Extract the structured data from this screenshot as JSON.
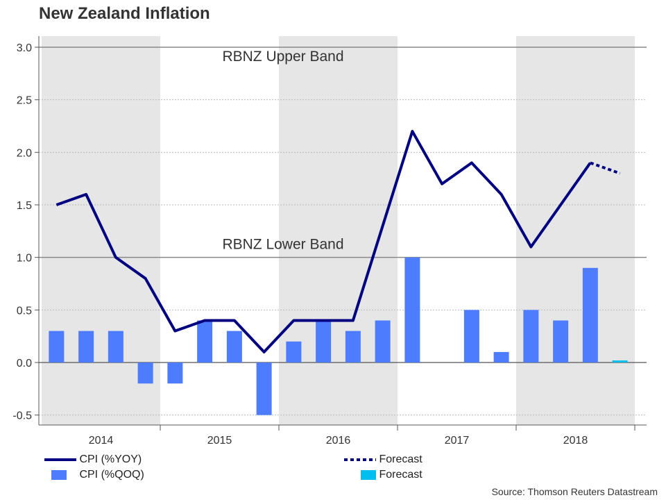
{
  "title": "New Zealand Inflation",
  "source": "Source: Thomson Reuters Datastream",
  "chart_data": {
    "type": "bar+line",
    "title": "New Zealand Inflation",
    "ylim": [
      -0.6,
      3.0
    ],
    "yticks": [
      "3.0",
      "2.5",
      "2.0",
      "1.5",
      "1.0",
      "0.5",
      "0.0",
      "-0.5"
    ],
    "ytick_values": [
      3.0,
      2.5,
      2.0,
      1.5,
      1.0,
      0.5,
      0.0,
      -0.5
    ],
    "years": [
      "2014",
      "2015",
      "2016",
      "2017",
      "2018"
    ],
    "shaded_years": [
      "2014",
      "2016",
      "2018"
    ],
    "shade_color": "#e6e6e6",
    "reference_lines": [
      {
        "label": "RBNZ Upper Band",
        "value": 3.0
      },
      {
        "label": "RBNZ Lower Band",
        "value": 1.0
      }
    ],
    "quarters": [
      "2014 Q1",
      "2014 Q2",
      "2014 Q3",
      "2014 Q4",
      "2015 Q1",
      "2015 Q2",
      "2015 Q3",
      "2015 Q4",
      "2016 Q1",
      "2016 Q2",
      "2016 Q3",
      "2016 Q4",
      "2017 Q1",
      "2017 Q2",
      "2017 Q3",
      "2017 Q4",
      "2018 Q1",
      "2018 Q2",
      "2018 Q3",
      "2018 Q4"
    ],
    "series": [
      {
        "name": "CPI (%YOY)",
        "kind": "line",
        "color": "#000080",
        "values": [
          1.5,
          1.6,
          1.0,
          0.8,
          0.3,
          0.4,
          0.4,
          0.1,
          0.4,
          0.4,
          0.4,
          1.3,
          2.2,
          1.7,
          1.9,
          1.6,
          1.1,
          1.5,
          1.9,
          null
        ]
      },
      {
        "name": "CPI (%QOQ)",
        "kind": "bar",
        "color": "#4d7cff",
        "values": [
          0.3,
          0.3,
          0.3,
          -0.2,
          -0.2,
          0.4,
          0.3,
          -0.5,
          0.2,
          0.4,
          0.3,
          0.4,
          1.0,
          0.0,
          0.5,
          0.1,
          0.5,
          0.4,
          0.9,
          null
        ]
      },
      {
        "name": "Forecast",
        "kind": "line-dotted",
        "color": "#000080",
        "points": [
          {
            "quarter": "2018 Q3",
            "value": 1.9
          },
          {
            "quarter": "2018 Q4",
            "value": 1.8
          }
        ]
      },
      {
        "name": "Forecast",
        "kind": "bar",
        "color": "#00bfef",
        "points": [
          {
            "quarter": "2018 Q4",
            "value": 0.02
          }
        ]
      }
    ],
    "legend": [
      {
        "label": "CPI (%YOY)",
        "swatch": "line"
      },
      {
        "label": "CPI (%QOQ)",
        "swatch": "bar"
      },
      {
        "label": "Forecast",
        "swatch": "dotted"
      },
      {
        "label": "Forecast",
        "swatch": "bar-forecast"
      }
    ],
    "legend_position": "bottom"
  }
}
